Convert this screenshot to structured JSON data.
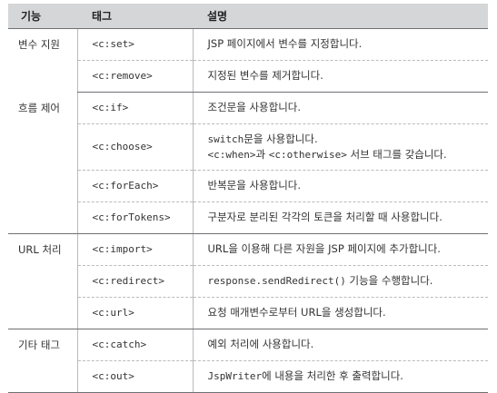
{
  "headers": [
    "기능",
    "태그",
    "설명"
  ],
  "groups": [
    {
      "function": "변수 지원",
      "rows": [
        {
          "tag": "<c:set>",
          "desc": "JSP 페이지에서 변수를 지정합니다."
        },
        {
          "tag": "<c:remove>",
          "desc": "지정된 변수를 제거합니다."
        }
      ]
    },
    {
      "function": "흐름 제어",
      "rows": [
        {
          "tag": "<c:if>",
          "desc": "조건문을 사용합니다."
        },
        {
          "tag": "<c:choose>",
          "desc_code": "switch",
          "desc": "문을 사용합니다.",
          "desc_line2_code1": "<c:when>",
          "desc_line2_mid": "과 ",
          "desc_line2_code2": "<c:otherwise>",
          "desc_line2_end": " 서브 태그를 갖습니다."
        },
        {
          "tag": "<c:forEach>",
          "desc": "반복문을 사용합니다."
        },
        {
          "tag": "<c:forTokens>",
          "desc": "구분자로 분리된 각각의 토큰을 처리할 때 사용합니다."
        }
      ]
    },
    {
      "function": "URL 처리",
      "rows": [
        {
          "tag": "<c:import>",
          "desc": "URL을 이용해 다른 자원을 JSP 페이지에 추가합니다."
        },
        {
          "tag": "<c:redirect>",
          "desc_code": "response.sendRedirect()",
          "desc": " 기능을 수행합니다."
        },
        {
          "tag": "<c:url>",
          "desc": "요청 매개변수로부터 URL을 생성합니다."
        }
      ]
    },
    {
      "function": "기타 태그",
      "rows": [
        {
          "tag": "<c:catch>",
          "desc": "예외 처리에 사용합니다."
        },
        {
          "tag": "<c:out>",
          "desc_code": "JspWriter",
          "desc": "에 내용을 처리한 후 출력합니다."
        }
      ]
    }
  ]
}
